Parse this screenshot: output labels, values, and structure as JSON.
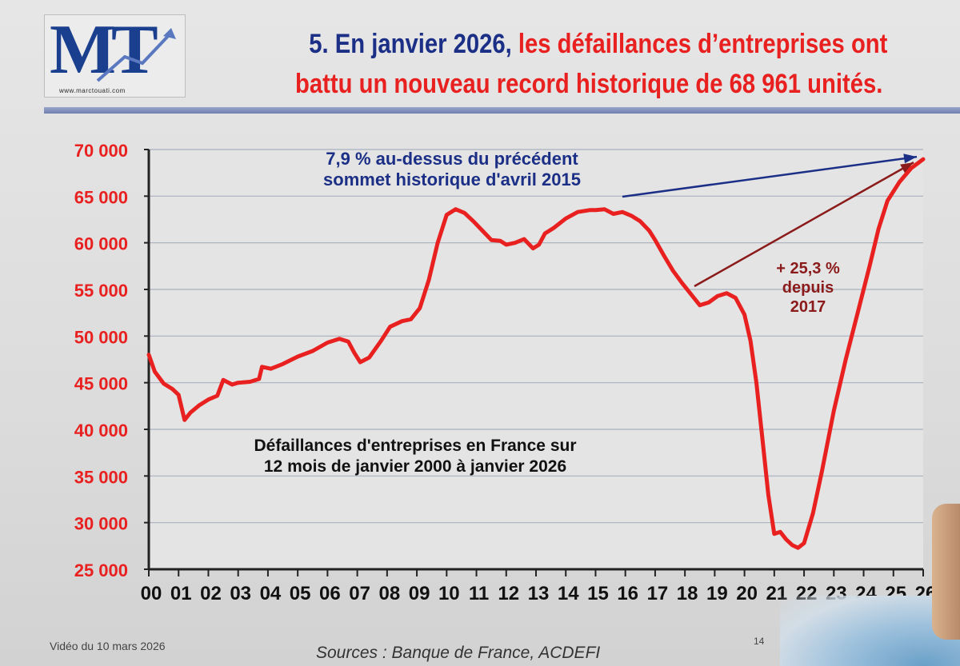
{
  "logo": {
    "mark": "MT",
    "url": "www.marctouati.com"
  },
  "headline": {
    "part1": "5. En janvier 2026,",
    "part2": " les défaillances d’entreprises ont",
    "line2": "battu un nouveau record historique de 68 961 unités."
  },
  "colors": {
    "navy": "#1b2f86",
    "red": "#e8201f",
    "axis": "#222222",
    "grid": "#a9b0bd"
  },
  "chart_data": {
    "type": "line",
    "title": "",
    "xlabel": "",
    "ylabel": "",
    "ylim": [
      25000,
      70000
    ],
    "xlim": [
      2000,
      2026
    ],
    "grid": true,
    "y_ticks": [
      25000,
      30000,
      35000,
      40000,
      45000,
      50000,
      55000,
      60000,
      65000,
      70000
    ],
    "y_tick_labels": [
      "25 000",
      "30 000",
      "35 000",
      "40 000",
      "45 000",
      "50 000",
      "55 000",
      "60 000",
      "65 000",
      "70 000"
    ],
    "x_tick_labels": [
      "00",
      "01",
      "02",
      "03",
      "04",
      "05",
      "06",
      "07",
      "08",
      "09",
      "10",
      "11",
      "12",
      "13",
      "14",
      "15",
      "16",
      "17",
      "18",
      "19",
      "20",
      "21",
      "22",
      "23",
      "24",
      "25",
      "26"
    ],
    "series": [
      {
        "color": "#e8201f",
        "points": [
          [
            2000.0,
            48000
          ],
          [
            2000.2,
            46200
          ],
          [
            2000.5,
            44900
          ],
          [
            2000.8,
            44300
          ],
          [
            2001.0,
            43700
          ],
          [
            2001.2,
            41000
          ],
          [
            2001.4,
            41800
          ],
          [
            2001.7,
            42600
          ],
          [
            2002.0,
            43200
          ],
          [
            2002.3,
            43600
          ],
          [
            2002.5,
            45300
          ],
          [
            2002.8,
            44800
          ],
          [
            2003.0,
            45000
          ],
          [
            2003.4,
            45100
          ],
          [
            2003.7,
            45400
          ],
          [
            2003.8,
            46700
          ],
          [
            2004.1,
            46500
          ],
          [
            2004.5,
            47000
          ],
          [
            2005.0,
            47800
          ],
          [
            2005.5,
            48400
          ],
          [
            2006.0,
            49300
          ],
          [
            2006.4,
            49700
          ],
          [
            2006.7,
            49400
          ],
          [
            2006.9,
            48200
          ],
          [
            2007.1,
            47200
          ],
          [
            2007.4,
            47700
          ],
          [
            2007.8,
            49500
          ],
          [
            2008.1,
            51000
          ],
          [
            2008.5,
            51600
          ],
          [
            2008.8,
            51800
          ],
          [
            2009.1,
            53000
          ],
          [
            2009.4,
            56000
          ],
          [
            2009.7,
            60000
          ],
          [
            2010.0,
            63000
          ],
          [
            2010.3,
            63600
          ],
          [
            2010.6,
            63200
          ],
          [
            2010.9,
            62300
          ],
          [
            2011.2,
            61300
          ],
          [
            2011.5,
            60300
          ],
          [
            2011.8,
            60200
          ],
          [
            2012.0,
            59800
          ],
          [
            2012.3,
            60000
          ],
          [
            2012.6,
            60400
          ],
          [
            2012.9,
            59400
          ],
          [
            2013.1,
            59800
          ],
          [
            2013.3,
            61000
          ],
          [
            2013.6,
            61600
          ],
          [
            2014.0,
            62600
          ],
          [
            2014.4,
            63300
          ],
          [
            2014.8,
            63500
          ],
          [
            2015.0,
            63500
          ],
          [
            2015.3,
            63600
          ],
          [
            2015.6,
            63100
          ],
          [
            2015.9,
            63300
          ],
          [
            2016.2,
            62900
          ],
          [
            2016.5,
            62300
          ],
          [
            2016.8,
            61300
          ],
          [
            2017.0,
            60300
          ],
          [
            2017.3,
            58600
          ],
          [
            2017.6,
            57000
          ],
          [
            2017.9,
            55700
          ],
          [
            2018.2,
            54500
          ],
          [
            2018.5,
            53300
          ],
          [
            2018.8,
            53600
          ],
          [
            2019.1,
            54300
          ],
          [
            2019.4,
            54600
          ],
          [
            2019.7,
            54100
          ],
          [
            2020.0,
            52300
          ],
          [
            2020.2,
            49500
          ],
          [
            2020.4,
            45000
          ],
          [
            2020.6,
            39000
          ],
          [
            2020.8,
            33000
          ],
          [
            2021.0,
            28800
          ],
          [
            2021.2,
            29000
          ],
          [
            2021.4,
            28200
          ],
          [
            2021.6,
            27600
          ],
          [
            2021.8,
            27300
          ],
          [
            2022.0,
            27800
          ],
          [
            2022.3,
            31000
          ],
          [
            2022.6,
            35500
          ],
          [
            2023.0,
            42000
          ],
          [
            2023.4,
            47500
          ],
          [
            2023.8,
            52500
          ],
          [
            2024.2,
            57500
          ],
          [
            2024.5,
            61500
          ],
          [
            2024.8,
            64500
          ],
          [
            2025.2,
            66500
          ],
          [
            2025.6,
            68000
          ],
          [
            2026.0,
            68961
          ]
        ]
      }
    ],
    "annotations": [
      {
        "lines": [
          "7,9 % au-dessus du précédent",
          "sommet historique d'avril 2015"
        ],
        "color": "#1b2f86"
      },
      {
        "lines": [
          "+ 25,3 %",
          "depuis",
          "2017"
        ],
        "color": "#8b1a1a"
      },
      {
        "lines": [
          "Défaillances d'entreprises en France sur",
          "12 mois de janvier 2000 à janvier 2026"
        ],
        "color": "#111111"
      }
    ]
  },
  "footer": {
    "video": "Vidéo du 10 mars 2026",
    "page": "14",
    "sources": "Sources : Banque de France, ACDEFI"
  }
}
